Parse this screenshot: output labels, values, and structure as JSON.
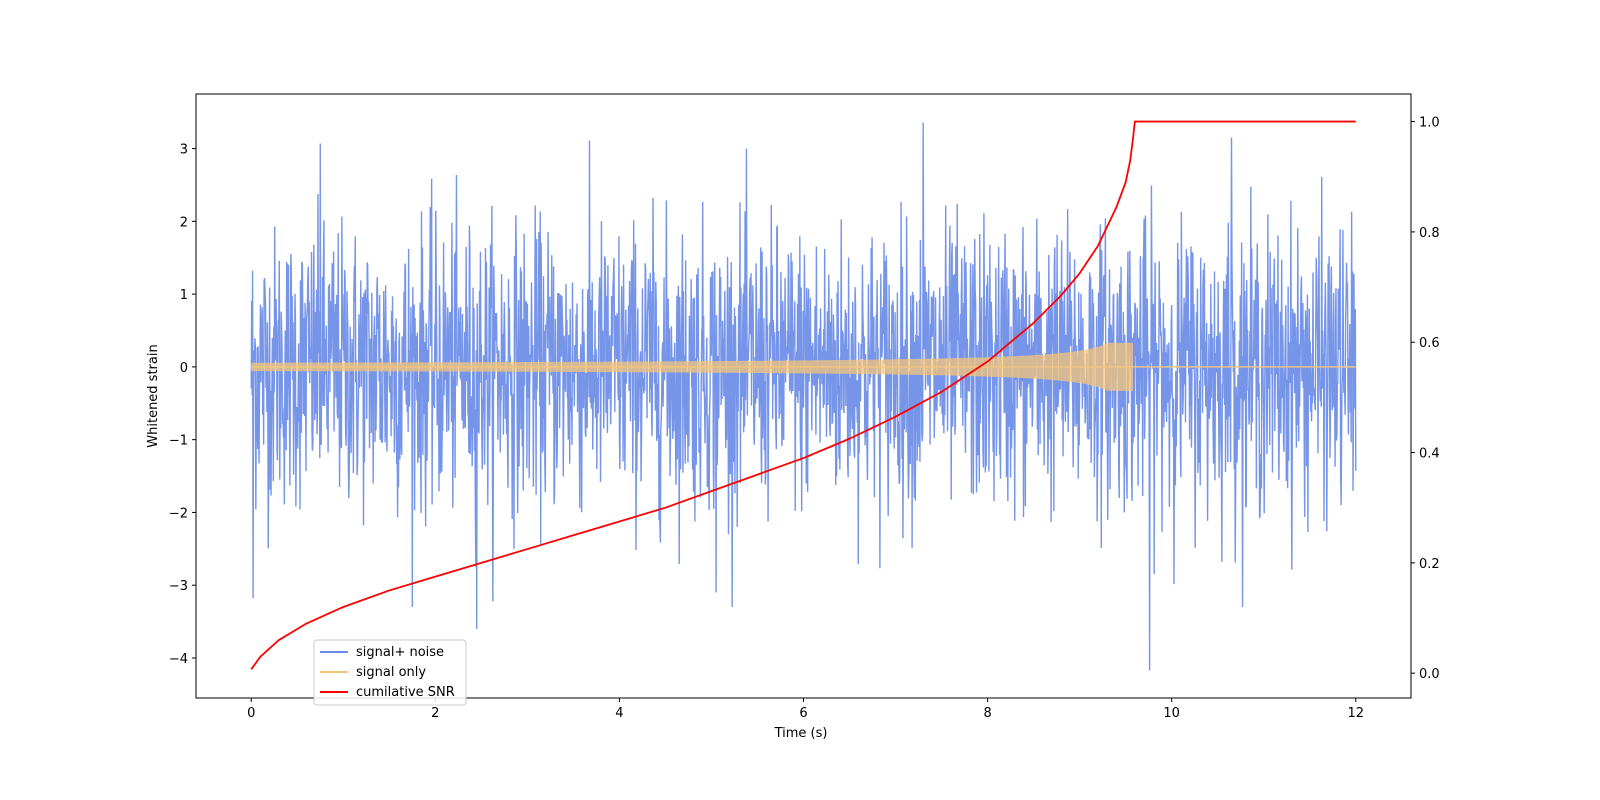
{
  "chart_data": {
    "type": "line",
    "xlabel": "Time (s)",
    "ylabel": "Whitened strain",
    "xlim": [
      -0.6,
      12.6
    ],
    "ylim": [
      -4.55,
      3.75
    ],
    "y2lim": [
      -0.045,
      1.05
    ],
    "x_ticks": [
      0,
      2,
      4,
      6,
      8,
      10,
      12
    ],
    "y_ticks": [
      -4,
      -3,
      -2,
      -1,
      0,
      1,
      2,
      3
    ],
    "y2_ticks": [
      0.0,
      0.2,
      0.4,
      0.6,
      0.8,
      1.0
    ],
    "legend_position": "lower-left",
    "series": [
      {
        "name": "signal+ noise",
        "color": "#6a8ce6",
        "axis": "left",
        "x_range": [
          0,
          12
        ],
        "samples": 2400,
        "typical_abs_max": 2.0,
        "extremes": [
          {
            "x": 0.02,
            "y": -3.18
          },
          {
            "x": 7.3,
            "y": 3.36
          },
          {
            "x": 9.76,
            "y": -4.17
          },
          {
            "x": 2.45,
            "y": -3.6
          },
          {
            "x": 0.75,
            "y": 3.07
          },
          {
            "x": 10.65,
            "y": 3.15
          },
          {
            "x": 5.05,
            "y": -3.1
          }
        ]
      },
      {
        "name": "signal only",
        "color": "#f5c57a",
        "axis": "left",
        "x_range": [
          0,
          12
        ],
        "merger_time": 9.58,
        "peak_amplitude": 0.33
      },
      {
        "name": "cumilative SNR",
        "color": "#ff0000",
        "axis": "right",
        "x": [
          0,
          0.1,
          0.3,
          0.6,
          1.0,
          1.5,
          2.0,
          2.5,
          3.0,
          3.5,
          4.0,
          4.5,
          5.0,
          5.5,
          6.0,
          6.5,
          7.0,
          7.5,
          8.0,
          8.5,
          8.8,
          9.0,
          9.2,
          9.4,
          9.5,
          9.55,
          9.58,
          9.6,
          12.0
        ],
        "y": [
          0.007,
          0.03,
          0.06,
          0.09,
          0.12,
          0.15,
          0.175,
          0.2,
          0.225,
          0.25,
          0.275,
          0.3,
          0.33,
          0.36,
          0.39,
          0.425,
          0.465,
          0.51,
          0.565,
          0.635,
          0.685,
          0.725,
          0.775,
          0.845,
          0.89,
          0.93,
          0.97,
          1.0,
          1.0
        ]
      }
    ]
  }
}
